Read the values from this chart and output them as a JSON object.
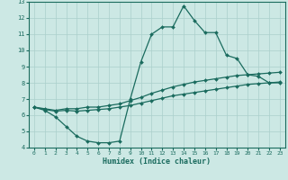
{
  "xlabel": "Humidex (Indice chaleur)",
  "bg_color": "#cce8e4",
  "line_color": "#1a6b5e",
  "grid_color": "#aacfcb",
  "xmin": 0,
  "xmax": 23,
  "ymin": 4,
  "ymax": 13,
  "xticks": [
    0,
    1,
    2,
    3,
    4,
    5,
    6,
    7,
    8,
    9,
    10,
    11,
    12,
    13,
    14,
    15,
    16,
    17,
    18,
    19,
    20,
    21,
    22,
    23
  ],
  "yticks": [
    4,
    5,
    6,
    7,
    8,
    9,
    10,
    11,
    12,
    13
  ],
  "line_max": [
    6.5,
    6.3,
    5.9,
    5.3,
    4.7,
    4.4,
    4.3,
    4.3,
    4.4,
    7.0,
    9.3,
    11.0,
    11.45,
    11.45,
    12.75,
    11.85,
    11.1,
    11.1,
    9.7,
    9.5,
    8.5,
    8.4,
    8.0,
    8.0
  ],
  "line_mean": [
    6.5,
    6.4,
    6.3,
    6.4,
    6.4,
    6.5,
    6.5,
    6.6,
    6.7,
    6.9,
    7.1,
    7.35,
    7.55,
    7.75,
    7.9,
    8.05,
    8.15,
    8.25,
    8.35,
    8.45,
    8.5,
    8.55,
    8.6,
    8.65
  ],
  "line_min": [
    6.5,
    6.35,
    6.25,
    6.3,
    6.25,
    6.3,
    6.35,
    6.4,
    6.5,
    6.6,
    6.75,
    6.9,
    7.05,
    7.2,
    7.3,
    7.4,
    7.5,
    7.6,
    7.7,
    7.8,
    7.9,
    7.95,
    8.0,
    8.05
  ]
}
